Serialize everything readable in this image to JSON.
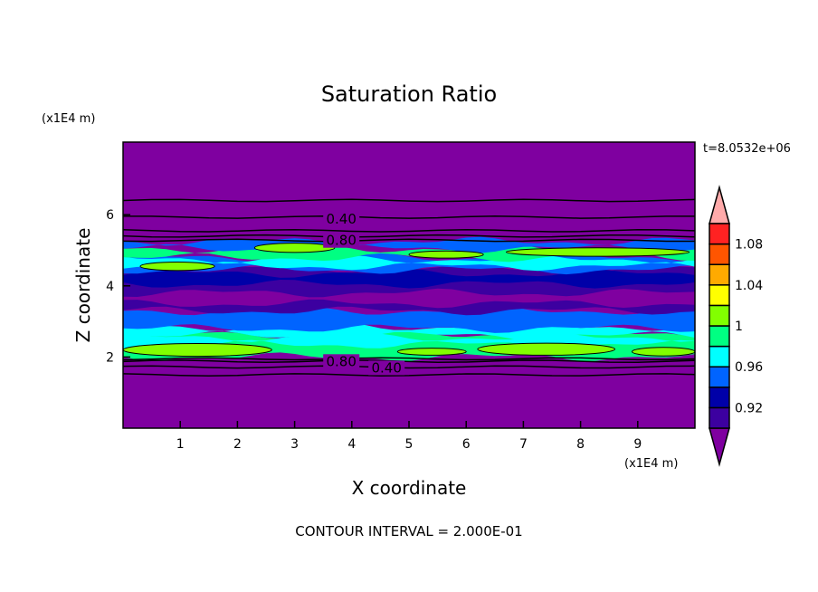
{
  "chart_data": {
    "type": "heatmap",
    "title": "Saturation Ratio",
    "xlabel": "X coordinate",
    "ylabel": "Z coordinate",
    "x_unit_label": "(x1E4 m)",
    "y_unit_label": "(x1E4 m)",
    "time_label": "t=8.0532e+06",
    "footer": "CONTOUR INTERVAL = 2.000E-01",
    "xlim": [
      0,
      10
    ],
    "ylim": [
      0,
      8.04
    ],
    "x_ticks": [
      1,
      2,
      3,
      4,
      5,
      6,
      7,
      8,
      9
    ],
    "x_tick_labels": [
      "1",
      "2",
      "3",
      "4",
      "5",
      "6",
      "7",
      "8",
      "9"
    ],
    "y_ticks": [
      2,
      4,
      6
    ],
    "y_tick_labels": [
      "2",
      "4",
      "6"
    ],
    "background_color": "#7f00a0",
    "colorbar": {
      "levels_colors": [
        "#3c00a0",
        "#0000a8",
        "#0064ff",
        "#00ffff",
        "#00ff82",
        "#82ff00",
        "#ffff00",
        "#ffaa00",
        "#ff5500",
        "#ff2222"
      ],
      "under_color": "#7f00a0",
      "over_color": "#ffaaaa",
      "labels": [
        "0.92",
        "0.96",
        "1",
        "1.04",
        "1.08"
      ],
      "label_boundary_index": [
        1,
        3,
        5,
        7,
        9
      ]
    },
    "bands": [
      {
        "z0": 2.0,
        "z1": 2.65,
        "color": "#00ff82"
      },
      {
        "z0": 2.35,
        "z1": 2.55,
        "color": "#00ffff"
      },
      {
        "z0": 2.6,
        "z1": 2.85,
        "color": "#00ffff"
      },
      {
        "z0": 2.8,
        "z1": 3.3,
        "color": "#0064ff"
      },
      {
        "z0": 3.3,
        "z1": 4.5,
        "color": "#3c00a0"
      },
      {
        "z0": 3.5,
        "z1": 3.8,
        "color": "#7f00a0"
      },
      {
        "z0": 4.05,
        "z1": 4.35,
        "color": "#0000a8"
      },
      {
        "z0": 4.45,
        "z1": 4.8,
        "color": "#0064ff"
      },
      {
        "z0": 4.55,
        "z1": 4.75,
        "color": "#00ffff"
      },
      {
        "z0": 4.8,
        "z1": 5.05,
        "color": "#00ff82"
      },
      {
        "z0": 5.05,
        "z1": 5.25,
        "color": "#0064ff"
      }
    ],
    "patches": [
      {
        "x0": 0.3,
        "x1": 1.6,
        "z": 4.55,
        "h": 0.12,
        "color": "#82ff00"
      },
      {
        "x0": 2.3,
        "x1": 3.7,
        "z": 5.07,
        "h": 0.13,
        "color": "#82ff00"
      },
      {
        "x0": 5.0,
        "x1": 6.3,
        "z": 4.88,
        "h": 0.1,
        "color": "#82ff00"
      },
      {
        "x0": 6.7,
        "x1": 9.9,
        "z": 4.95,
        "h": 0.12,
        "color": "#82ff00"
      },
      {
        "x0": 0.0,
        "x1": 2.6,
        "z": 2.2,
        "h": 0.18,
        "color": "#82ff00"
      },
      {
        "x0": 4.8,
        "x1": 6.0,
        "z": 2.15,
        "h": 0.1,
        "color": "#82ff00"
      },
      {
        "x0": 6.2,
        "x1": 8.6,
        "z": 2.22,
        "h": 0.17,
        "color": "#82ff00"
      },
      {
        "x0": 8.9,
        "x1": 10.0,
        "z": 2.15,
        "h": 0.12,
        "color": "#82ff00"
      }
    ],
    "contour_lines_z": [
      6.4,
      5.93,
      5.55,
      5.4,
      5.28,
      1.95,
      1.88,
      1.72,
      1.5
    ],
    "contour_labels": [
      {
        "text": "0.40",
        "x": 3.5,
        "z": 5.9
      },
      {
        "text": "0.80",
        "x": 3.5,
        "z": 5.3
      },
      {
        "text": "0.80",
        "x": 3.5,
        "z": 1.9
      },
      {
        "text": "0.40",
        "x": 3.5,
        "z": 1.72
      }
    ]
  }
}
